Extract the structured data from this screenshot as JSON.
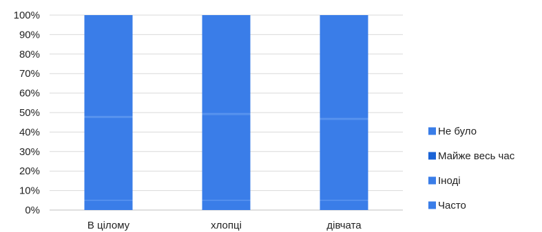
{
  "chart_data": {
    "type": "bar",
    "stacked": true,
    "percent": true,
    "categories": [
      "В цілому",
      "хлопці",
      "дівчата"
    ],
    "series": [
      {
        "name": "Часто",
        "values": [
          5,
          5,
          5
        ],
        "color": "#3a7de8"
      },
      {
        "name": "Іноді",
        "values": [
          42.5,
          44,
          41.5
        ],
        "color": "#3a7de8"
      },
      {
        "name": "Майже весь час",
        "values": [
          0.5,
          0.5,
          0.5
        ],
        "color": "#1a63d6"
      },
      {
        "name": "Не було",
        "values": [
          52,
          50.5,
          53
        ],
        "color": "#3a7de8"
      }
    ],
    "y_ticks": [
      "0%",
      "10%",
      "20%",
      "30%",
      "40%",
      "50%",
      "60%",
      "70%",
      "80%",
      "90%",
      "100%"
    ],
    "ylim": [
      0,
      100
    ],
    "grid": true,
    "legend_position": "right",
    "legend_order": [
      "Не було",
      "Майже весь час",
      "Іноді",
      "Часто"
    ]
  }
}
